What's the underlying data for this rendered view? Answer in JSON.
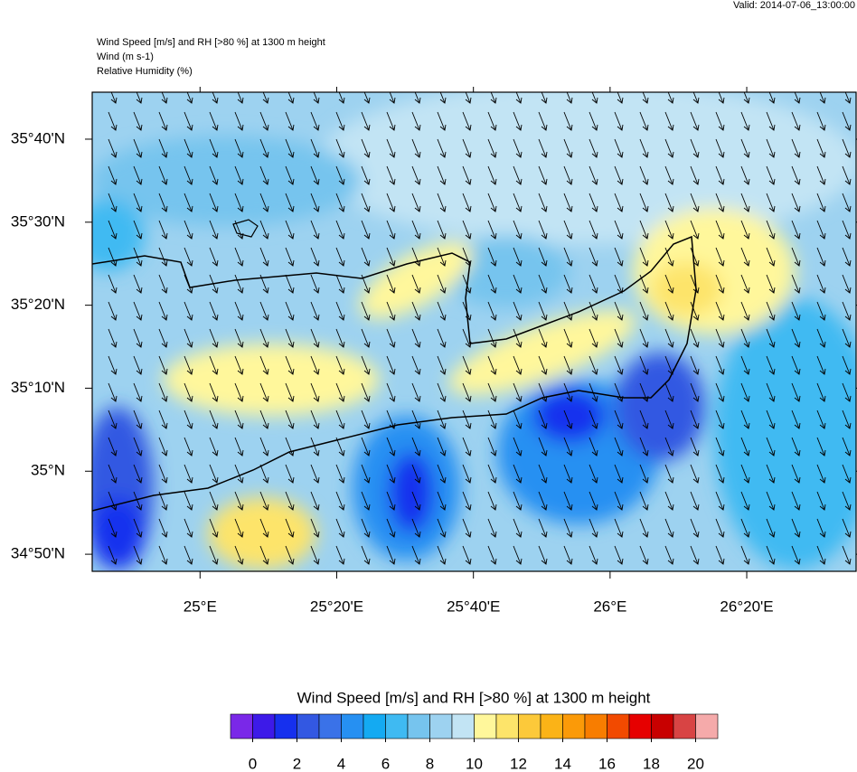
{
  "header": {
    "valid": "Valid: 2014-07-06_13:00:00",
    "title_lines": [
      "Wind Speed [m/s] and RH [>80 %] at 1300 m height",
      "Wind   (m s-1)",
      "Relative Humidity   (%)"
    ]
  },
  "map": {
    "lonlim": [
      24.737,
      26.6
    ],
    "latlim": [
      34.799,
      35.761
    ],
    "xticks": [
      {
        "value": 25,
        "label": "25°E"
      },
      {
        "value": 25.3333,
        "label": "25°20'E"
      },
      {
        "value": 25.6667,
        "label": "25°40'E"
      },
      {
        "value": 26,
        "label": "26°E"
      },
      {
        "value": 26.3333,
        "label": "26°20'E"
      }
    ],
    "yticks": [
      {
        "value": 35.6667,
        "label": "35°40'N"
      },
      {
        "value": 35.5,
        "label": "35°30'N"
      },
      {
        "value": 35.3333,
        "label": "35°20'N"
      },
      {
        "value": 35.1667,
        "label": "35°10'N"
      },
      {
        "value": 35,
        "label": "35°N"
      },
      {
        "value": 34.8333,
        "label": "34°50'N"
      }
    ]
  },
  "colorbar": {
    "title": "Wind Speed [m/s] and RH [>80 %] at 1300 m height",
    "range": [
      -1,
      21
    ],
    "ticks": [
      0,
      2,
      4,
      6,
      8,
      10,
      12,
      14,
      16,
      18,
      20
    ],
    "colors": [
      "#7a28e8",
      "#3d1ae8",
      "#1630ee",
      "#3358e2",
      "#3a72e8",
      "#2690f2",
      "#14aaf2",
      "#3fbaf2",
      "#76c4ee",
      "#9dd2f0",
      "#c2e4f4",
      "#fff79b",
      "#fde46a",
      "#fcc93a",
      "#fbb317",
      "#fb9a08",
      "#f87d00",
      "#f24a00",
      "#e60000",
      "#c80000",
      "#d84444",
      "#f5aaaa"
    ]
  }
}
